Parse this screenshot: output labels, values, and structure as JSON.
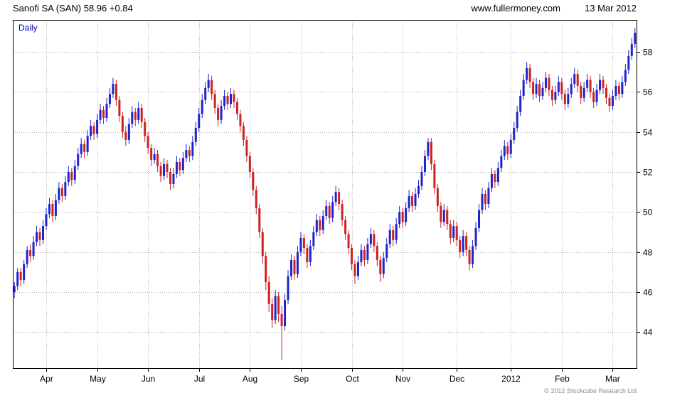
{
  "header": {
    "title": "Sanofi SA (SAN) 58.96 +0.84",
    "website": "www.fullermoney.com",
    "date": "13 Mar 2012"
  },
  "chart_label": "Daily",
  "footer": {
    "copyright": "© 2012 Stockcube Research Ltd"
  },
  "chart_data": {
    "type": "candlestick",
    "title": "Sanofi SA (SAN) Daily",
    "last_price": 58.96,
    "change": "+0.84",
    "ylim": [
      42.2,
      59.6
    ],
    "yticks": [
      44,
      46,
      48,
      50,
      52,
      54,
      56,
      58
    ],
    "grid": true,
    "legend": "none",
    "colors": {
      "up": "#2222cc",
      "down": "#cc2222",
      "grid": "#b0b0b0",
      "frame": "#000000"
    },
    "month_ticks": [
      {
        "label": "Apr",
        "index": 10
      },
      {
        "label": "May",
        "index": 26
      },
      {
        "label": "Jun",
        "index": 42
      },
      {
        "label": "Jul",
        "index": 58
      },
      {
        "label": "Aug",
        "index": 74
      },
      {
        "label": "Sep",
        "index": 90
      },
      {
        "label": "Oct",
        "index": 106
      },
      {
        "label": "Nov",
        "index": 122
      },
      {
        "label": "Dec",
        "index": 139
      },
      {
        "label": "2012",
        "index": 156
      },
      {
        "label": "Feb",
        "index": 172
      },
      {
        "label": "Mar",
        "index": 188
      }
    ],
    "candles": [
      [
        46.0,
        46.5,
        45.7,
        46.3
      ],
      [
        46.3,
        47.2,
        46.1,
        47.0
      ],
      [
        47.0,
        47.2,
        46.3,
        46.6
      ],
      [
        46.6,
        47.6,
        46.4,
        47.4
      ],
      [
        47.4,
        48.3,
        47.2,
        48.1
      ],
      [
        48.1,
        48.4,
        47.5,
        47.8
      ],
      [
        47.8,
        48.8,
        47.6,
        48.5
      ],
      [
        48.5,
        49.3,
        48.3,
        49.0
      ],
      [
        49.0,
        49.2,
        48.3,
        48.6
      ],
      [
        48.6,
        49.6,
        48.4,
        49.3
      ],
      [
        49.3,
        50.2,
        49.1,
        49.9
      ],
      [
        49.9,
        50.7,
        49.7,
        50.4
      ],
      [
        50.4,
        50.6,
        49.5,
        49.8
      ],
      [
        49.8,
        50.9,
        49.6,
        50.6
      ],
      [
        50.6,
        51.5,
        50.4,
        51.2
      ],
      [
        51.2,
        51.4,
        50.5,
        50.8
      ],
      [
        50.8,
        51.8,
        50.6,
        51.5
      ],
      [
        51.5,
        52.3,
        51.3,
        52.0
      ],
      [
        52.0,
        52.2,
        51.3,
        51.6
      ],
      [
        51.6,
        52.6,
        51.4,
        52.3
      ],
      [
        52.3,
        53.2,
        52.1,
        52.9
      ],
      [
        52.9,
        53.7,
        52.7,
        53.4
      ],
      [
        53.4,
        53.6,
        52.7,
        53.0
      ],
      [
        53.0,
        54.1,
        52.8,
        53.8
      ],
      [
        53.8,
        54.6,
        53.6,
        54.3
      ],
      [
        54.3,
        54.5,
        53.6,
        53.9
      ],
      [
        53.9,
        54.9,
        53.7,
        54.6
      ],
      [
        54.6,
        55.4,
        54.4,
        55.1
      ],
      [
        55.1,
        55.3,
        54.4,
        54.7
      ],
      [
        54.7,
        55.7,
        54.5,
        55.4
      ],
      [
        55.4,
        56.2,
        55.2,
        55.9
      ],
      [
        55.9,
        56.7,
        55.7,
        56.4
      ],
      [
        56.4,
        56.6,
        55.3,
        55.6
      ],
      [
        55.6,
        55.8,
        54.5,
        54.8
      ],
      [
        54.8,
        55.0,
        53.7,
        54.0
      ],
      [
        54.0,
        54.3,
        53.3,
        53.6
      ],
      [
        53.6,
        54.7,
        53.4,
        54.4
      ],
      [
        54.4,
        55.3,
        54.2,
        55.0
      ],
      [
        55.0,
        55.2,
        54.3,
        54.6
      ],
      [
        54.6,
        55.5,
        54.4,
        55.2
      ],
      [
        55.2,
        55.4,
        54.2,
        54.5
      ],
      [
        54.5,
        54.7,
        53.5,
        53.8
      ],
      [
        53.8,
        54.0,
        52.9,
        53.2
      ],
      [
        53.2,
        53.4,
        52.3,
        52.6
      ],
      [
        52.6,
        53.2,
        52.4,
        52.9
      ],
      [
        52.9,
        53.1,
        52.0,
        52.3
      ],
      [
        52.3,
        52.5,
        51.5,
        51.8
      ],
      [
        51.8,
        52.7,
        51.6,
        52.4
      ],
      [
        52.4,
        52.6,
        51.7,
        52.0
      ],
      [
        52.0,
        52.2,
        51.1,
        51.4
      ],
      [
        51.4,
        52.2,
        51.2,
        51.9
      ],
      [
        51.9,
        52.8,
        51.7,
        52.5
      ],
      [
        52.5,
        52.7,
        51.8,
        52.1
      ],
      [
        52.1,
        53.0,
        51.9,
        52.7
      ],
      [
        52.7,
        53.4,
        52.5,
        53.1
      ],
      [
        53.1,
        53.3,
        52.5,
        52.8
      ],
      [
        52.8,
        53.8,
        52.6,
        53.5
      ],
      [
        53.5,
        54.5,
        53.3,
        54.2
      ],
      [
        54.2,
        55.2,
        54.0,
        54.9
      ],
      [
        54.9,
        55.9,
        54.7,
        55.6
      ],
      [
        55.6,
        56.5,
        55.4,
        56.2
      ],
      [
        56.2,
        56.9,
        56.0,
        56.6
      ],
      [
        56.6,
        56.8,
        55.6,
        55.9
      ],
      [
        55.9,
        56.1,
        54.9,
        55.2
      ],
      [
        55.2,
        55.4,
        54.3,
        54.6
      ],
      [
        54.6,
        55.6,
        54.4,
        55.3
      ],
      [
        55.3,
        56.1,
        55.1,
        55.8
      ],
      [
        55.8,
        56.0,
        55.1,
        55.4
      ],
      [
        55.4,
        56.2,
        55.2,
        55.9
      ],
      [
        55.9,
        56.1,
        55.2,
        55.5
      ],
      [
        55.5,
        55.7,
        54.6,
        54.9
      ],
      [
        54.9,
        55.1,
        54.0,
        54.3
      ],
      [
        54.3,
        54.5,
        53.3,
        53.6
      ],
      [
        53.6,
        53.8,
        52.5,
        52.8
      ],
      [
        52.8,
        53.0,
        51.7,
        52.0
      ],
      [
        52.0,
        52.2,
        50.8,
        51.1
      ],
      [
        51.1,
        51.3,
        49.9,
        50.2
      ],
      [
        50.2,
        50.4,
        48.7,
        49.0
      ],
      [
        49.0,
        49.2,
        47.4,
        47.8
      ],
      [
        47.8,
        48.0,
        46.1,
        46.5
      ],
      [
        46.5,
        46.8,
        45.0,
        45.4
      ],
      [
        45.4,
        45.7,
        44.2,
        44.6
      ],
      [
        44.6,
        46.1,
        44.4,
        45.8
      ],
      [
        45.8,
        46.0,
        44.5,
        44.9
      ],
      [
        44.9,
        45.3,
        42.6,
        44.3
      ],
      [
        44.3,
        45.9,
        44.1,
        45.6
      ],
      [
        45.6,
        47.1,
        45.4,
        46.8
      ],
      [
        46.8,
        47.9,
        46.6,
        47.6
      ],
      [
        47.6,
        47.8,
        46.6,
        46.9
      ],
      [
        46.9,
        48.3,
        46.7,
        48.0
      ],
      [
        48.0,
        49.0,
        47.8,
        48.7
      ],
      [
        48.7,
        48.9,
        47.9,
        48.2
      ],
      [
        48.2,
        48.4,
        47.2,
        47.5
      ],
      [
        47.5,
        48.6,
        47.3,
        48.3
      ],
      [
        48.3,
        49.3,
        48.1,
        49.0
      ],
      [
        49.0,
        49.9,
        48.8,
        49.6
      ],
      [
        49.6,
        49.8,
        48.8,
        49.1
      ],
      [
        49.1,
        50.1,
        48.9,
        49.8
      ],
      [
        49.8,
        50.6,
        49.6,
        50.3
      ],
      [
        50.3,
        50.5,
        49.4,
        49.7
      ],
      [
        49.7,
        50.8,
        49.5,
        50.5
      ],
      [
        50.5,
        51.3,
        50.3,
        51.0
      ],
      [
        51.0,
        51.2,
        50.1,
        50.4
      ],
      [
        50.4,
        50.6,
        49.3,
        49.6
      ],
      [
        49.6,
        49.8,
        48.6,
        48.9
      ],
      [
        48.9,
        49.1,
        47.9,
        48.2
      ],
      [
        48.2,
        48.4,
        47.1,
        47.4
      ],
      [
        47.4,
        47.6,
        46.4,
        46.8
      ],
      [
        46.8,
        47.8,
        46.6,
        47.5
      ],
      [
        47.5,
        48.4,
        47.3,
        48.1
      ],
      [
        48.1,
        48.3,
        47.3,
        47.6
      ],
      [
        47.6,
        48.7,
        47.4,
        48.4
      ],
      [
        48.4,
        49.2,
        48.2,
        48.9
      ],
      [
        48.9,
        49.1,
        48.0,
        48.3
      ],
      [
        48.3,
        48.5,
        47.3,
        47.6
      ],
      [
        47.6,
        47.8,
        46.5,
        46.9
      ],
      [
        46.9,
        48.0,
        46.7,
        47.7
      ],
      [
        47.7,
        48.7,
        47.5,
        48.4
      ],
      [
        48.4,
        49.4,
        48.2,
        49.1
      ],
      [
        49.1,
        49.3,
        48.3,
        48.6
      ],
      [
        48.6,
        49.7,
        48.4,
        49.4
      ],
      [
        49.4,
        50.3,
        49.2,
        50.0
      ],
      [
        50.0,
        50.2,
        49.2,
        49.5
      ],
      [
        49.5,
        50.5,
        49.3,
        50.2
      ],
      [
        50.2,
        51.1,
        50.0,
        50.8
      ],
      [
        50.8,
        51.0,
        50.0,
        50.3
      ],
      [
        50.3,
        51.2,
        50.1,
        50.9
      ],
      [
        50.9,
        51.6,
        50.7,
        51.3
      ],
      [
        51.3,
        52.3,
        51.1,
        52.0
      ],
      [
        52.0,
        53.1,
        51.8,
        52.8
      ],
      [
        52.8,
        53.7,
        52.6,
        53.5
      ],
      [
        53.5,
        53.7,
        52.1,
        52.4
      ],
      [
        52.4,
        52.6,
        50.9,
        51.2
      ],
      [
        51.2,
        51.4,
        50.0,
        50.3
      ],
      [
        50.3,
        50.5,
        49.2,
        49.5
      ],
      [
        49.5,
        50.4,
        49.3,
        50.1
      ],
      [
        50.1,
        50.3,
        49.1,
        49.4
      ],
      [
        49.4,
        49.6,
        48.4,
        48.7
      ],
      [
        48.7,
        49.6,
        48.5,
        49.3
      ],
      [
        49.3,
        49.5,
        48.3,
        48.6
      ],
      [
        48.6,
        48.8,
        47.7,
        48.0
      ],
      [
        48.0,
        49.1,
        47.8,
        48.8
      ],
      [
        48.8,
        49.0,
        47.8,
        48.1
      ],
      [
        48.1,
        48.3,
        47.1,
        47.4
      ],
      [
        47.4,
        48.6,
        47.2,
        48.3
      ],
      [
        48.3,
        49.5,
        48.1,
        49.2
      ],
      [
        49.2,
        50.4,
        49.0,
        50.1
      ],
      [
        50.1,
        51.2,
        49.9,
        50.9
      ],
      [
        50.9,
        51.1,
        50.1,
        50.4
      ],
      [
        50.4,
        51.5,
        50.2,
        51.2
      ],
      [
        51.2,
        52.2,
        51.0,
        51.9
      ],
      [
        51.9,
        52.1,
        51.2,
        51.5
      ],
      [
        51.5,
        52.5,
        51.3,
        52.2
      ],
      [
        52.2,
        53.1,
        52.0,
        52.8
      ],
      [
        52.8,
        53.6,
        52.6,
        53.3
      ],
      [
        53.3,
        53.5,
        52.6,
        52.9
      ],
      [
        52.9,
        53.9,
        52.7,
        53.6
      ],
      [
        53.6,
        54.5,
        53.4,
        54.2
      ],
      [
        54.2,
        55.3,
        54.0,
        55.0
      ],
      [
        55.0,
        56.1,
        54.8,
        55.8
      ],
      [
        55.8,
        56.9,
        55.6,
        56.6
      ],
      [
        56.6,
        57.5,
        56.4,
        57.2
      ],
      [
        57.2,
        57.4,
        56.2,
        56.5
      ],
      [
        56.5,
        56.7,
        55.6,
        55.9
      ],
      [
        55.9,
        56.7,
        55.7,
        56.4
      ],
      [
        56.4,
        56.6,
        55.5,
        55.8
      ],
      [
        55.8,
        56.5,
        55.6,
        56.2
      ],
      [
        56.2,
        57.0,
        56.0,
        56.7
      ],
      [
        56.7,
        56.9,
        55.8,
        56.1
      ],
      [
        56.1,
        56.3,
        55.3,
        55.6
      ],
      [
        55.6,
        56.3,
        55.4,
        56.0
      ],
      [
        56.0,
        56.8,
        55.8,
        56.5
      ],
      [
        56.5,
        56.7,
        55.6,
        55.9
      ],
      [
        55.9,
        56.1,
        55.1,
        55.4
      ],
      [
        55.4,
        56.2,
        55.2,
        55.9
      ],
      [
        55.9,
        56.7,
        55.7,
        56.4
      ],
      [
        56.4,
        57.2,
        56.2,
        56.9
      ],
      [
        56.9,
        57.1,
        56.0,
        56.3
      ],
      [
        56.3,
        56.5,
        55.4,
        55.7
      ],
      [
        55.7,
        56.5,
        55.5,
        56.2
      ],
      [
        56.2,
        56.9,
        56.0,
        56.6
      ],
      [
        56.6,
        56.8,
        55.7,
        56.0
      ],
      [
        56.0,
        56.2,
        55.2,
        55.5
      ],
      [
        55.5,
        56.4,
        55.3,
        56.1
      ],
      [
        56.1,
        56.9,
        55.9,
        56.6
      ],
      [
        56.6,
        56.8,
        55.9,
        56.2
      ],
      [
        56.2,
        56.4,
        55.4,
        55.7
      ],
      [
        55.7,
        55.9,
        55.0,
        55.3
      ],
      [
        55.3,
        56.1,
        55.1,
        55.8
      ],
      [
        55.8,
        56.6,
        55.6,
        56.3
      ],
      [
        56.3,
        56.5,
        55.6,
        55.9
      ],
      [
        55.9,
        56.8,
        55.7,
        56.5
      ],
      [
        56.5,
        57.4,
        56.3,
        57.1
      ],
      [
        57.1,
        58.1,
        56.9,
        57.8
      ],
      [
        57.8,
        58.7,
        57.6,
        58.4
      ],
      [
        58.4,
        59.2,
        58.2,
        58.96
      ]
    ]
  }
}
